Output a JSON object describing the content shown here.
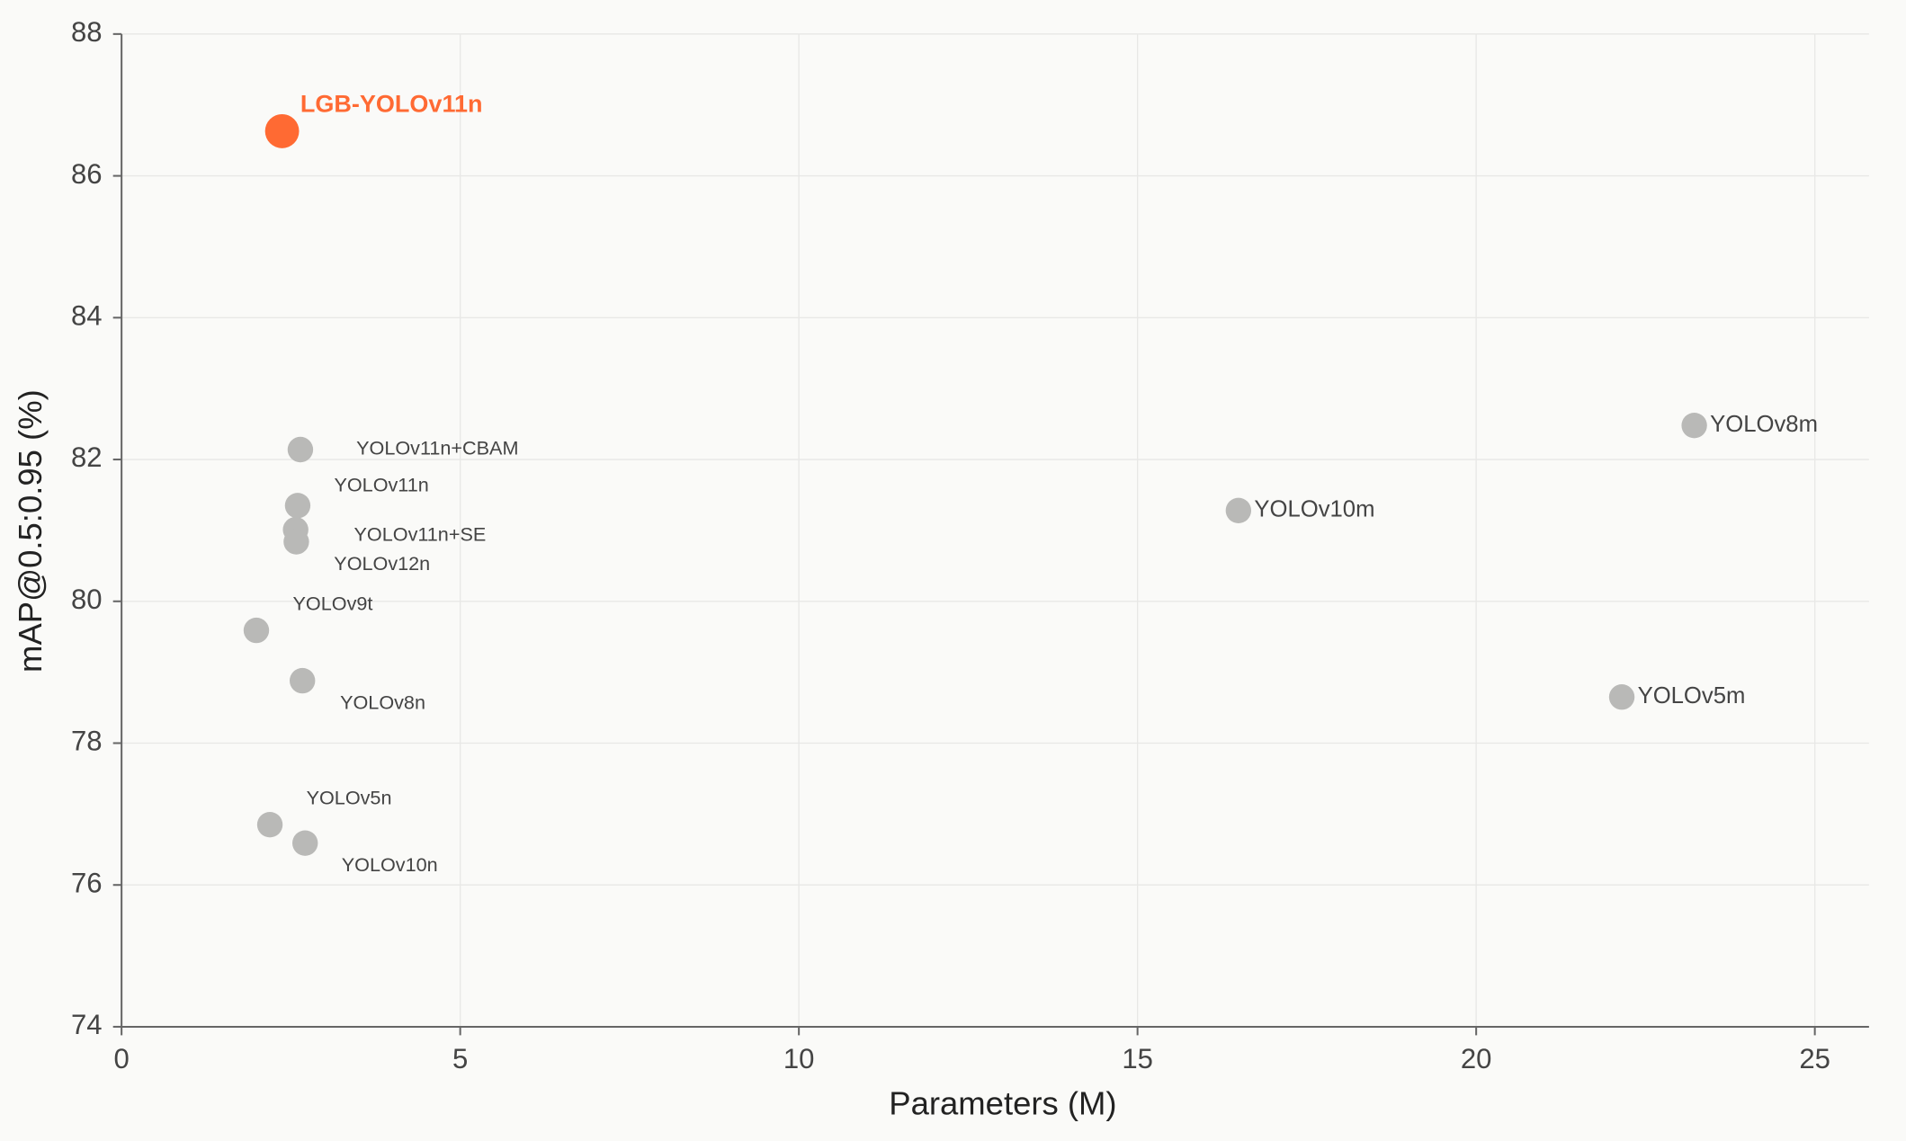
{
  "chart_data": {
    "type": "scatter",
    "x_label": "Parameters (M)",
    "y_label": "mAP@0.5:0.95 (%)",
    "xlim": [
      0,
      25.8
    ],
    "xticks": [
      0,
      5,
      10,
      15,
      20,
      25
    ],
    "ylim": [
      74,
      88
    ],
    "yticks": [
      74,
      76,
      78,
      80,
      82,
      84,
      86,
      88
    ],
    "grid": true,
    "points": [
      {
        "label": "LGB-YOLOv11n",
        "x": 2.37,
        "y": 86.63,
        "color": "#ff6a33"
      },
      {
        "label": "YOLOv11n+CBAM",
        "x": 2.64,
        "y": 82.14,
        "color": "#b9b9b7"
      },
      {
        "label": "YOLOv11n",
        "x": 2.6,
        "y": 81.35,
        "color": "#b9b9b7"
      },
      {
        "label": "YOLOv11n+SE",
        "x": 2.57,
        "y": 81.01,
        "color": "#b9b9b7"
      },
      {
        "label": "YOLOv12n",
        "x": 2.58,
        "y": 80.84,
        "color": "#b9b9b7"
      },
      {
        "label": "YOLOv9t",
        "x": 1.99,
        "y": 79.59,
        "color": "#b9b9b7"
      },
      {
        "label": "YOLOv8n",
        "x": 2.67,
        "y": 78.88,
        "color": "#b9b9b7"
      },
      {
        "label": "YOLOv5n",
        "x": 2.19,
        "y": 76.85,
        "color": "#b9b9b7"
      },
      {
        "label": "YOLOv10n",
        "x": 2.71,
        "y": 76.59,
        "color": "#b9b9b7"
      },
      {
        "label": "YOLOv10m",
        "x": 16.49,
        "y": 81.28,
        "color": "#b9b9b7"
      },
      {
        "label": "YOLOv8m",
        "x": 23.22,
        "y": 82.48,
        "color": "#b9b9b7"
      },
      {
        "label": "YOLOv5m",
        "x": 22.15,
        "y": 78.65,
        "color": "#b9b9b7"
      }
    ]
  }
}
